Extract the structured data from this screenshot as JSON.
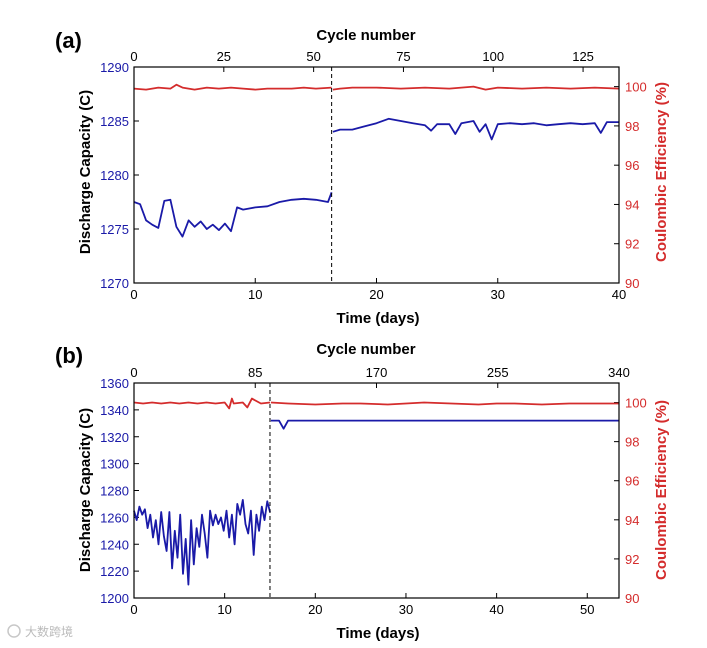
{
  "watermark": "大数跨境",
  "colors": {
    "capacity": "#1a1aa8",
    "efficiency": "#d42c2c",
    "axis": "#000000",
    "divider": "#000000"
  },
  "chart_data": [
    {
      "type": "line",
      "panel_label": "(a)",
      "xlabel": "Time (days)",
      "top_xlabel": "Cycle number",
      "ylabel": "Discharge Capacity (C)",
      "y2label": "Coulombic Efficiency (%)",
      "xlim": [
        0,
        40
      ],
      "x_ticks": [
        0,
        10,
        20,
        30,
        40
      ],
      "top_xlim": [
        0,
        135
      ],
      "top_ticks": [
        0,
        25,
        50,
        75,
        100,
        125
      ],
      "ylim": [
        1270,
        1290
      ],
      "y_ticks": [
        1270,
        1275,
        1280,
        1285,
        1290
      ],
      "y2lim": [
        90,
        101
      ],
      "y2_ticks": [
        90,
        92,
        94,
        96,
        98,
        100
      ],
      "divider_x": 16.3,
      "series": [
        {
          "name": "Discharge Capacity",
          "axis": "left",
          "segments": [
            {
              "x": [
                0,
                0.5,
                1,
                1.5,
                2,
                2.5,
                3,
                3.5,
                4,
                4.5,
                5,
                5.5,
                6,
                6.5,
                7,
                7.5,
                8,
                8.5,
                9,
                9.5,
                10,
                11,
                12,
                13,
                14,
                15,
                16,
                16.3
              ],
              "y": [
                1277.5,
                1277.3,
                1275.8,
                1275.4,
                1275.1,
                1277.6,
                1277.7,
                1275.2,
                1274.3,
                1275.8,
                1275.2,
                1275.7,
                1275.0,
                1275.4,
                1274.9,
                1275.5,
                1274.8,
                1277.0,
                1276.8,
                1276.9,
                1277.0,
                1277.1,
                1277.5,
                1277.7,
                1277.8,
                1277.7,
                1277.5,
                1278.4
              ]
            },
            {
              "x": [
                16.4,
                17,
                18,
                19,
                20,
                21,
                22,
                23,
                24,
                24.5,
                25,
                26,
                26.5,
                27,
                28,
                28.5,
                29,
                29.5,
                30,
                31,
                32,
                33,
                34,
                35,
                36,
                37,
                38,
                38.5,
                39,
                40
              ],
              "y": [
                1284.0,
                1284.2,
                1284.2,
                1284.5,
                1284.8,
                1285.2,
                1285.0,
                1284.8,
                1284.6,
                1284.1,
                1284.7,
                1284.7,
                1283.8,
                1284.8,
                1285.0,
                1284.0,
                1284.7,
                1283.3,
                1284.7,
                1284.8,
                1284.7,
                1284.8,
                1284.6,
                1284.7,
                1284.8,
                1284.7,
                1284.8,
                1283.9,
                1284.9,
                1284.9
              ]
            }
          ]
        },
        {
          "name": "Coulombic Efficiency",
          "axis": "right",
          "segments": [
            {
              "x": [
                0,
                1,
                2,
                3,
                3.5,
                4,
                5,
                6,
                7,
                8,
                9,
                10,
                11,
                12,
                13,
                14,
                15,
                16.3
              ],
              "y": [
                99.9,
                99.85,
                99.95,
                99.9,
                100.1,
                99.95,
                99.85,
                99.95,
                99.9,
                99.95,
                99.9,
                99.85,
                99.9,
                99.9,
                99.9,
                99.95,
                99.9,
                99.95
              ]
            },
            {
              "x": [
                16.4,
                17,
                18,
                20,
                22,
                24,
                26,
                27,
                28,
                29,
                30,
                32,
                34,
                36,
                38,
                40
              ],
              "y": [
                99.85,
                99.9,
                99.95,
                99.95,
                99.9,
                99.95,
                99.9,
                99.95,
                100.0,
                99.85,
                99.95,
                99.9,
                99.95,
                99.9,
                99.95,
                99.9
              ]
            }
          ]
        }
      ]
    },
    {
      "type": "line",
      "panel_label": "(b)",
      "xlabel": "Time (days)",
      "top_xlabel": "Cycle number",
      "ylabel": "Discharge Capacity (C)",
      "y2label": "Coulombic Efficiency (%)",
      "xlim": [
        0,
        53.5
      ],
      "x_ticks": [
        0,
        10,
        20,
        30,
        40,
        50
      ],
      "top_xlim": [
        0,
        340
      ],
      "top_ticks": [
        0,
        85,
        170,
        255,
        340
      ],
      "ylim": [
        1200,
        1360
      ],
      "y_ticks": [
        1200,
        1220,
        1240,
        1260,
        1280,
        1300,
        1320,
        1340,
        1360
      ],
      "y2lim": [
        90,
        101
      ],
      "y2_ticks": [
        90,
        92,
        94,
        96,
        98,
        100
      ],
      "divider_x": 15.0,
      "series": [
        {
          "name": "Discharge Capacity",
          "axis": "left",
          "segments": [
            {
              "x": [
                0,
                0.3,
                0.6,
                0.9,
                1.2,
                1.5,
                1.8,
                2.1,
                2.4,
                2.7,
                3.0,
                3.3,
                3.6,
                3.9,
                4.2,
                4.5,
                4.8,
                5.1,
                5.4,
                5.7,
                6.0,
                6.3,
                6.6,
                6.9,
                7.2,
                7.5,
                7.8,
                8.1,
                8.4,
                8.7,
                9.0,
                9.3,
                9.6,
                9.9,
                10.2,
                10.5,
                10.8,
                11.1,
                11.4,
                11.7,
                12.0,
                12.3,
                12.6,
                12.9,
                13.2,
                13.5,
                13.8,
                14.1,
                14.4,
                14.7,
                15.0
              ],
              "y": [
                1265,
                1258,
                1268,
                1262,
                1266,
                1252,
                1262,
                1245,
                1258,
                1240,
                1264,
                1246,
                1235,
                1264,
                1222,
                1250,
                1230,
                1262,
                1218,
                1244,
                1210,
                1258,
                1225,
                1252,
                1238,
                1262,
                1248,
                1230,
                1265,
                1254,
                1262,
                1255,
                1260,
                1250,
                1265,
                1245,
                1262,
                1240,
                1270,
                1262,
                1273,
                1255,
                1248,
                1265,
                1232,
                1262,
                1250,
                1268,
                1258,
                1272,
                1264
              ]
            },
            {
              "x": [
                15.1,
                15.5,
                16,
                16.5,
                17,
                18,
                20,
                22,
                25,
                28,
                30,
                32,
                35,
                38,
                40,
                42,
                45,
                48,
                50,
                53.5
              ],
              "y": [
                1332,
                1332,
                1332,
                1326,
                1332,
                1332,
                1332,
                1332,
                1332,
                1332,
                1332,
                1332,
                1332,
                1332,
                1332,
                1332,
                1332,
                1332,
                1332,
                1332
              ]
            }
          ]
        },
        {
          "name": "Coulombic Efficiency",
          "axis": "right",
          "segments": [
            {
              "x": [
                0,
                1,
                2,
                3,
                4,
                5,
                6,
                7,
                8,
                9,
                10,
                10.5,
                10.8,
                11,
                12,
                12.5,
                13,
                14,
                15
              ],
              "y": [
                100.0,
                99.95,
                100.0,
                99.95,
                100.0,
                99.95,
                100.0,
                99.95,
                100.0,
                99.95,
                100.0,
                99.7,
                100.2,
                99.95,
                100.0,
                99.75,
                100.2,
                99.95,
                100.0
              ]
            },
            {
              "x": [
                15.1,
                17,
                20,
                23,
                25,
                28,
                30,
                32,
                35,
                38,
                40,
                42,
                45,
                48,
                50,
                53.5
              ],
              "y": [
                100.0,
                99.95,
                99.9,
                99.95,
                99.95,
                99.9,
                99.95,
                100.0,
                99.95,
                99.9,
                99.95,
                99.95,
                99.9,
                99.95,
                99.95,
                99.95
              ]
            }
          ]
        }
      ]
    }
  ]
}
